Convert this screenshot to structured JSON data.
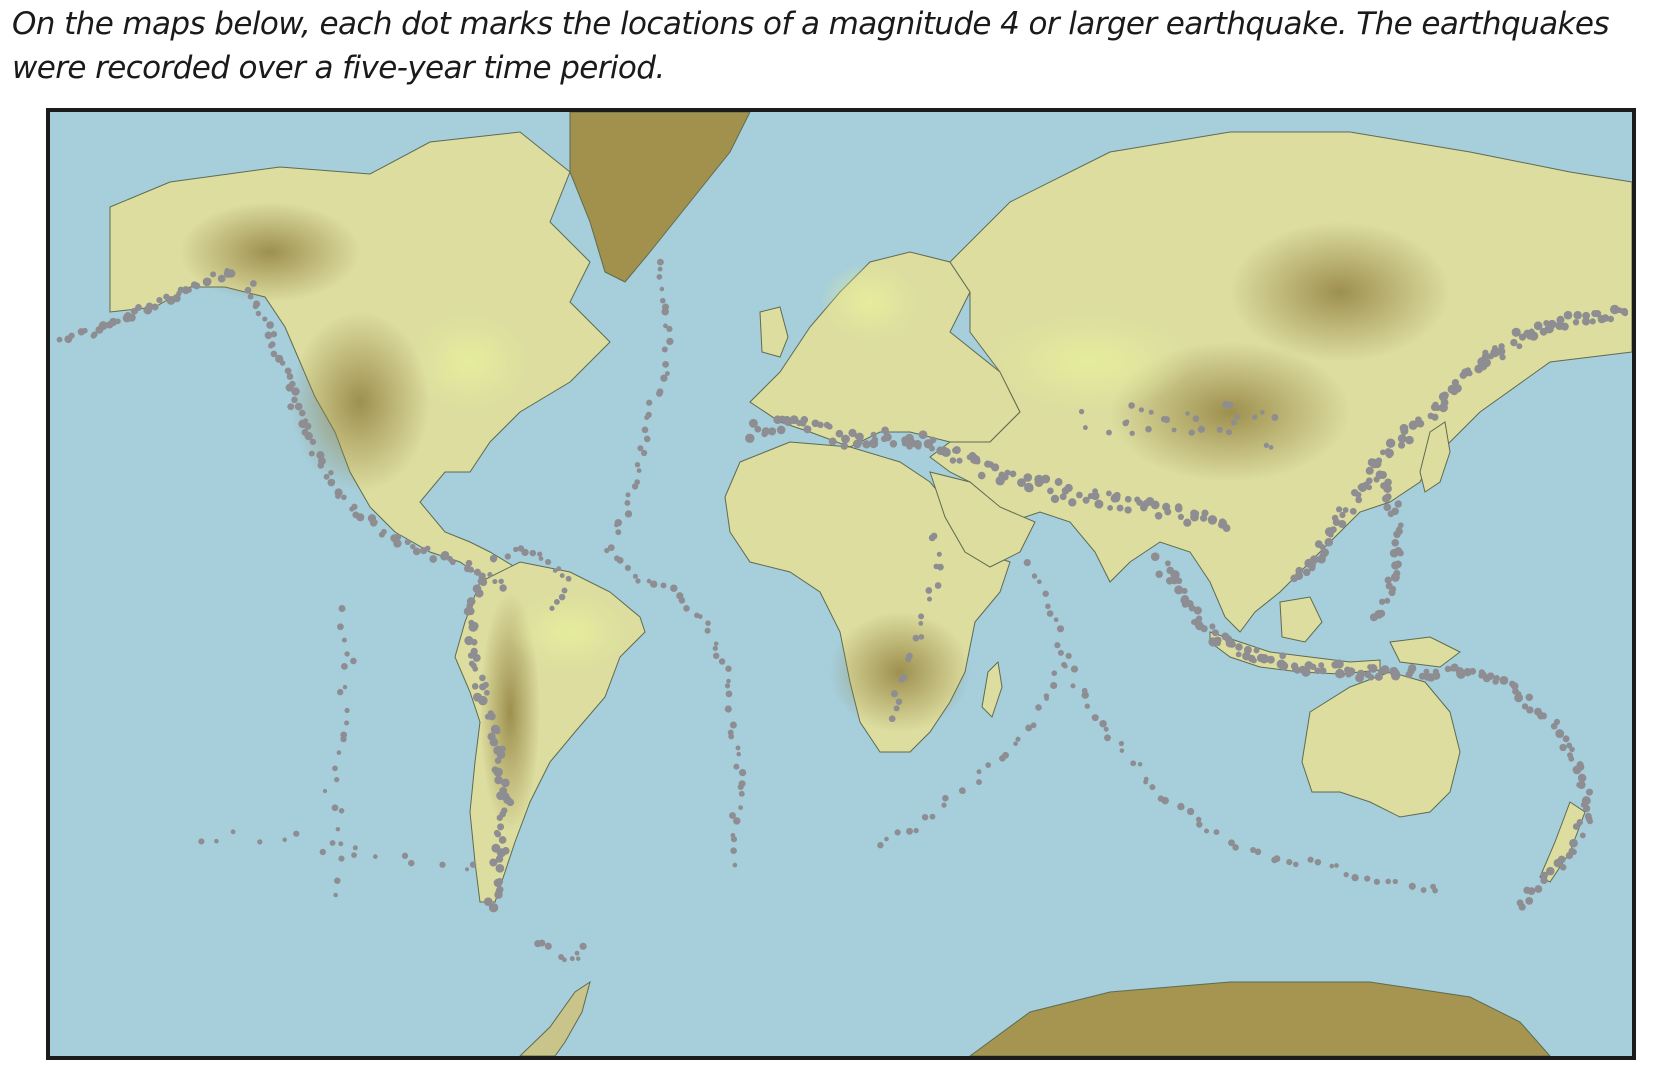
{
  "caption": {
    "line1": "On the maps below, each dot marks the locations of a magnitude 4 or larger earthquake. The earthquakes",
    "line2": "were  recorded over a five-year time period."
  },
  "map": {
    "projection": "Mercator",
    "colors": {
      "ocean": "#a6cedb",
      "lowland": "#e3eaa6",
      "land": "#d8d89a",
      "highland": "#b7a864",
      "mountain": "#938241",
      "ice": "#8c7d3e",
      "coastline": "#5f6b4f",
      "earthquake_dot": "#8d8d92",
      "border": "#1b1b1b"
    }
  }
}
